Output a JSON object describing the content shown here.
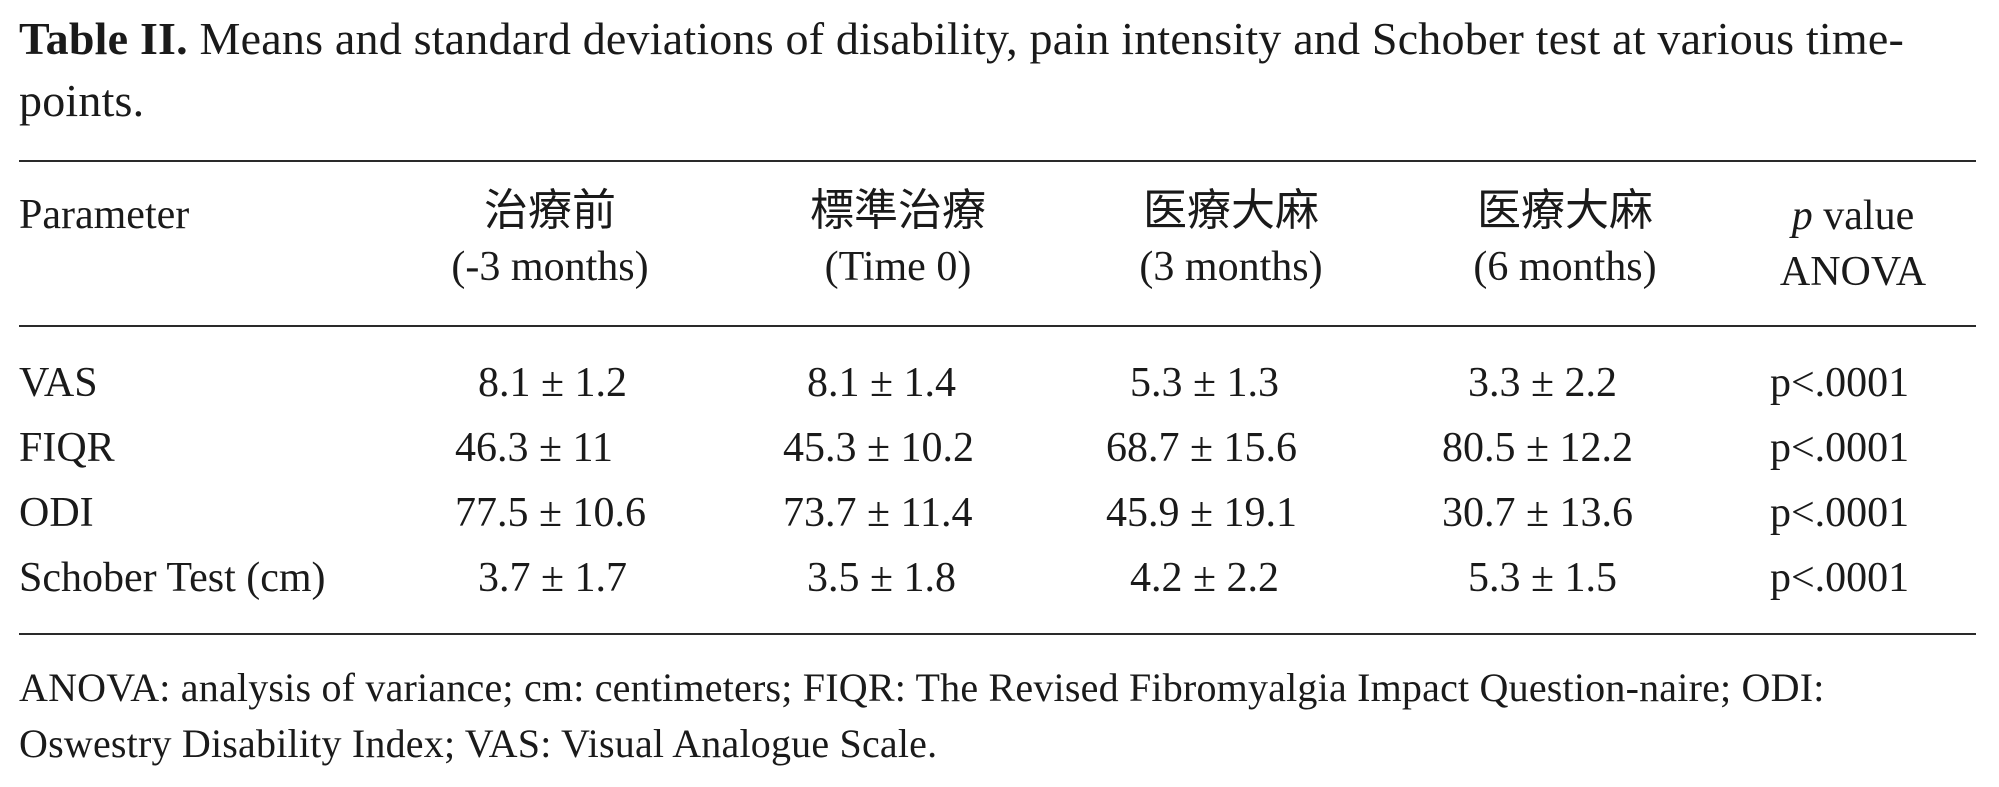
{
  "caption": {
    "label": "Table II.",
    "text": " Means and standard deviations of disability, pain intensity and Schober test at various time-points."
  },
  "table": {
    "headers": {
      "parameter": "Parameter",
      "cols": [
        {
          "top": "治療前",
          "sub": "(-3 months)"
        },
        {
          "top": "標準治療",
          "sub": "(Time 0)"
        },
        {
          "top": "医療大麻",
          "sub": "(3 months)"
        },
        {
          "top": "医療大麻",
          "sub": "(6 months)"
        }
      ],
      "p_italic": "p",
      "p_rest": " value",
      "p_sub": "ANOVA"
    },
    "rows": [
      {
        "param": "VAS",
        "c1": "8.1 ± 1.2",
        "c2": "8.1  ± 1.4",
        "c3": "5.3  ± 1.3",
        "c4": "3.3 ± 2.2",
        "p": "p<.0001"
      },
      {
        "param": "FIQR",
        "c1": "46.3 ± 11",
        "c2": "45.3  ± 10.2",
        "c3": "68.7  ± 15.6",
        "c4": "80.5 ± 12.2",
        "p": "p<.0001"
      },
      {
        "param": "ODI",
        "c1": "77.5 ± 10.6",
        "c2": "73.7  ± 11.4",
        "c3": "45.9  ± 19.1",
        "c4": "30.7 ± 13.6",
        "p": "p<.0001"
      },
      {
        "param": "Schober Test (cm)",
        "c1": "3.7 ± 1.7",
        "c2": "3.5  ± 1.8",
        "c3": "4.2  ± 2.2",
        "c4": "5.3 ± 1.5",
        "p": "p<.0001"
      }
    ]
  },
  "footnote": "ANOVA: analysis of variance; cm: centimeters; FIQR: The Revised Fibromyalgia Impact Question-naire; ODI: Oswestry Disability Index; VAS: Visual Analogue Scale."
}
